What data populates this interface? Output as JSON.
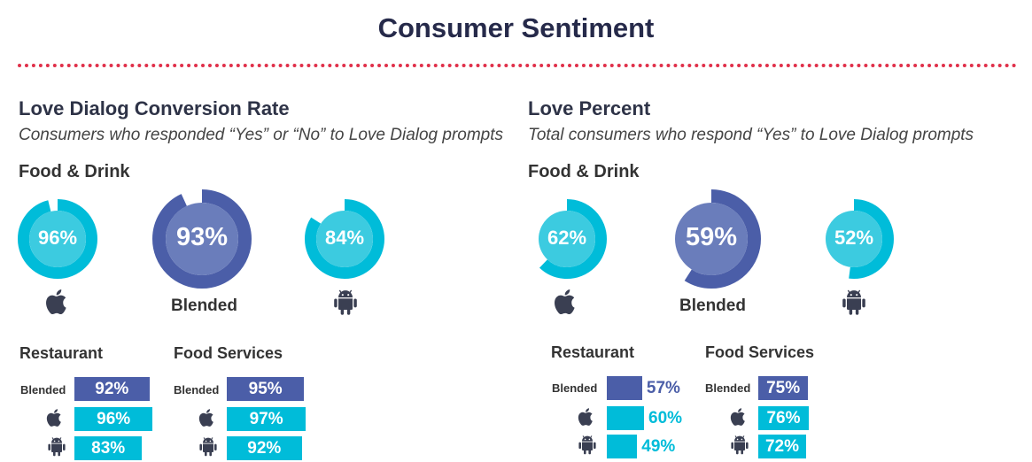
{
  "title": "Consumer Sentiment",
  "colors": {
    "blended": "#4b5ea8",
    "blended_inner": "#6a7dbb",
    "ios": "#00bcd9",
    "ios_inner": "#3ccbe0",
    "android": "#00bcd9",
    "divider": "#e0304a"
  },
  "left": {
    "title": "Love Dialog Conversion Rate",
    "subtitle": "Consumers who responded “Yes” or “No” to Love Dialog prompts",
    "category": "Food & Drink",
    "blended_label": "Blended",
    "restaurant_label": "Restaurant",
    "food_services_label": "Food Services",
    "row_blended_label": "Blended"
  },
  "right": {
    "title": "Love Percent",
    "subtitle": "Total consumers who respond “Yes” to Love Dialog prompts",
    "category": "Food & Drink",
    "blended_label": "Blended",
    "restaurant_label": "Restaurant",
    "food_services_label": "Food Services",
    "row_blended_label": "Blended"
  },
  "chart_data": [
    {
      "type": "donut",
      "title": "Love Dialog Conversion Rate",
      "series": [
        {
          "name": "iOS",
          "label": "96%",
          "value": 96
        },
        {
          "name": "Blended",
          "label": "93%",
          "value": 93
        },
        {
          "name": "Android",
          "label": "84%",
          "value": 84
        }
      ]
    },
    {
      "type": "bar",
      "title": "Restaurant",
      "categories": [
        "Blended",
        "iOS",
        "Android"
      ],
      "values": [
        92,
        96,
        83
      ],
      "labels": [
        "92%",
        "96%",
        "83%"
      ]
    },
    {
      "type": "bar",
      "title": "Food Services",
      "categories": [
        "Blended",
        "iOS",
        "Android"
      ],
      "values": [
        95,
        97,
        92
      ],
      "labels": [
        "95%",
        "97%",
        "92%"
      ]
    },
    {
      "type": "donut",
      "title": "Love Percent",
      "series": [
        {
          "name": "iOS",
          "label": "62%",
          "value": 62
        },
        {
          "name": "Blended",
          "label": "59%",
          "value": 59
        },
        {
          "name": "Android",
          "label": "52%",
          "value": 52
        }
      ]
    },
    {
      "type": "bar",
      "title": "Restaurant",
      "categories": [
        "Blended",
        "iOS",
        "Android"
      ],
      "values": [
        57,
        60,
        49
      ],
      "labels": [
        "57%",
        "60%",
        "49%"
      ]
    },
    {
      "type": "bar",
      "title": "Food Services",
      "categories": [
        "Blended",
        "iOS",
        "Android"
      ],
      "values": [
        75,
        76,
        72
      ],
      "labels": [
        "75%",
        "76%",
        "72%"
      ]
    }
  ]
}
